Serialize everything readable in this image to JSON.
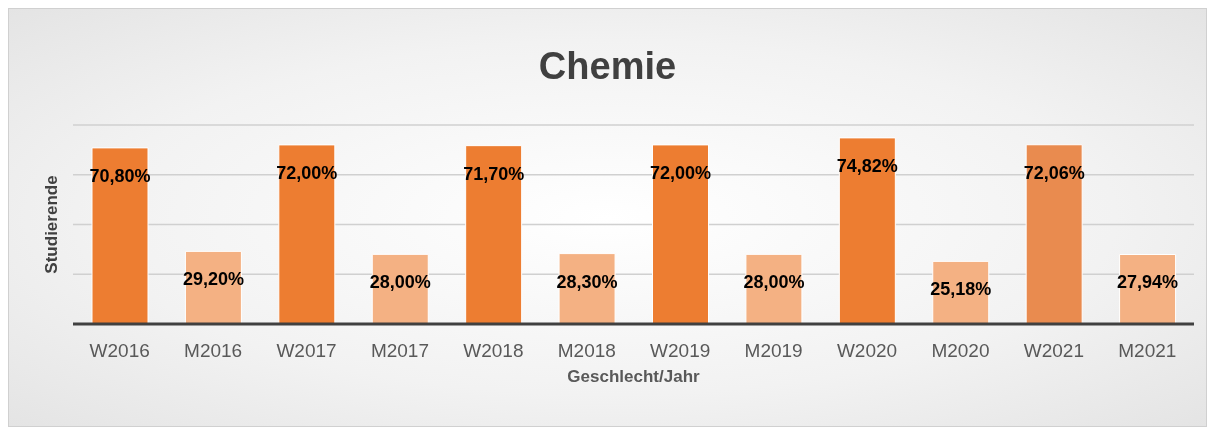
{
  "chart_data": {
    "type": "bar",
    "title": "Chemie",
    "xlabel": "Geschlecht/Jahr",
    "ylabel": "Studierende",
    "categories": [
      "W2016",
      "M2016",
      "W2017",
      "M2017",
      "W2018",
      "M2018",
      "W2019",
      "M2019",
      "W2020",
      "M2020",
      "W2021",
      "M2021"
    ],
    "values": [
      70.8,
      29.2,
      72.0,
      28.0,
      71.7,
      28.3,
      72.0,
      28.0,
      74.82,
      25.18,
      72.06,
      27.94
    ],
    "value_labels": [
      "70,80%",
      "29,20%",
      "72,00%",
      "28,00%",
      "71,70%",
      "28,30%",
      "72,00%",
      "28,00%",
      "74,82%",
      "25,18%",
      "72,06%",
      "27,94%"
    ],
    "colors": [
      "#ed7d31",
      "#f4b183",
      "#ed7d31",
      "#f4b183",
      "#ed7d31",
      "#f4b183",
      "#ed7d31",
      "#f4b183",
      "#ed7d31",
      "#f4b183",
      "#e98b4f",
      "#f4b183"
    ],
    "ylim": [
      0,
      80
    ],
    "tick_labels": "x",
    "grid": "y"
  }
}
